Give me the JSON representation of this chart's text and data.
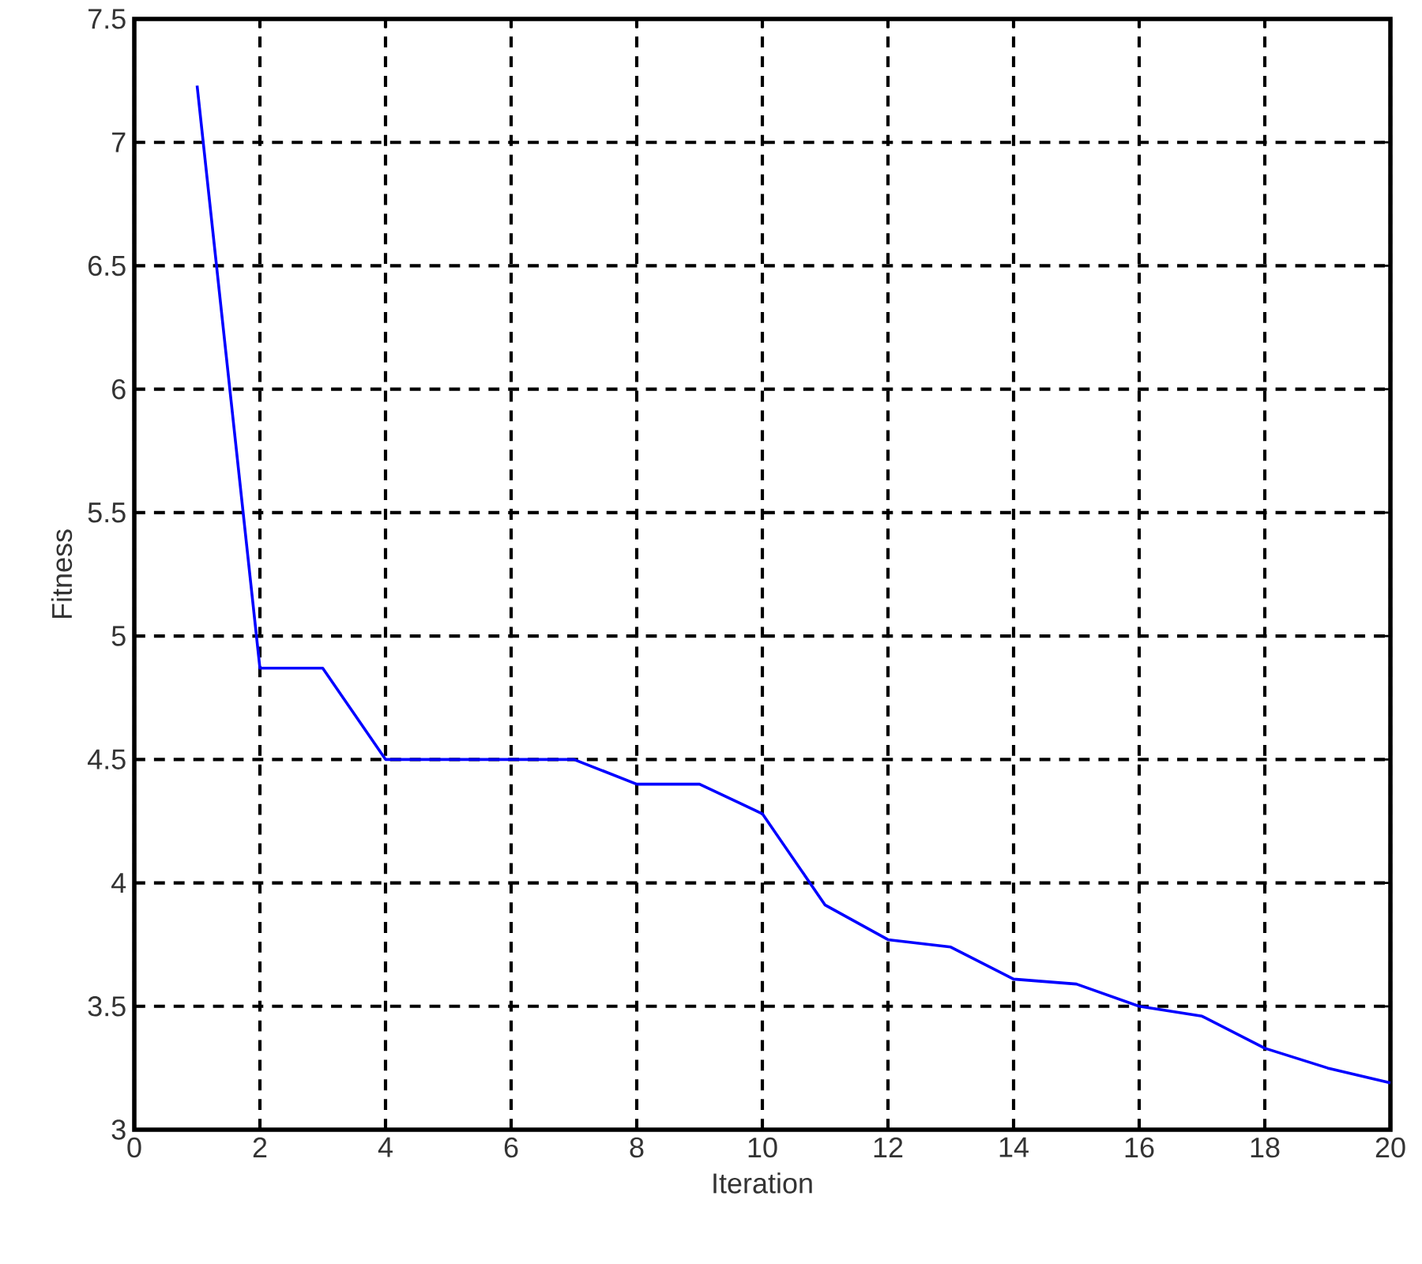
{
  "chart_data": {
    "type": "line",
    "xlabel": "Iteration",
    "ylabel": "Fitness",
    "x": [
      1,
      2,
      3,
      4,
      5,
      6,
      7,
      8,
      9,
      10,
      11,
      12,
      13,
      14,
      15,
      16,
      17,
      18,
      19,
      20
    ],
    "series": [
      {
        "color": "#0000ff",
        "values": [
          7.23,
          4.87,
          4.87,
          4.5,
          4.5,
          4.5,
          4.5,
          4.4,
          4.4,
          4.28,
          3.91,
          3.77,
          3.74,
          3.61,
          3.59,
          3.5,
          3.46,
          3.33,
          3.25,
          3.19
        ]
      }
    ],
    "xlim": [
      0,
      20
    ],
    "xticks": [
      0,
      2,
      4,
      6,
      8,
      10,
      12,
      14,
      16,
      18,
      20
    ],
    "ylim": [
      3,
      7.5
    ],
    "yticks": [
      3,
      3.5,
      4,
      4.5,
      5,
      5.5,
      6,
      6.5,
      7,
      7.5
    ],
    "grid": true,
    "marker": "none",
    "line_style": "solid"
  }
}
